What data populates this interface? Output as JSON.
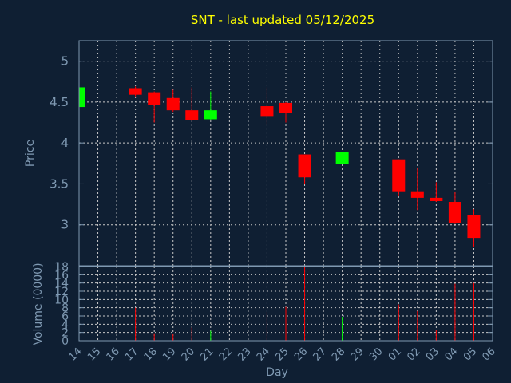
{
  "chart_data": [
    {
      "type": "candlestick",
      "title": "SNT - last updated 05/12/2025",
      "ylabel": "Price",
      "ylim": [
        2.5,
        5.25
      ],
      "yticks": [
        3,
        3.5,
        4,
        4.5,
        5
      ],
      "ytick_labels": [
        "3",
        "3.5",
        "4",
        "4.5",
        "5"
      ],
      "grid": true,
      "colors": {
        "up": "#00ff00",
        "down": "#ff0000"
      },
      "x": [
        "14",
        "15",
        "16",
        "17",
        "18",
        "19",
        "20",
        "21",
        "22",
        "23",
        "24",
        "25",
        "26",
        "27",
        "28",
        "29",
        "30",
        "01",
        "02",
        "03",
        "04",
        "05",
        "06"
      ],
      "candles": [
        {
          "day": "14",
          "open": 4.44,
          "high": 4.68,
          "low": 4.43,
          "close": 4.68
        },
        {
          "day": "17",
          "open": 4.67,
          "high": 4.69,
          "low": 4.57,
          "close": 4.59
        },
        {
          "day": "18",
          "open": 4.62,
          "high": 4.63,
          "low": 4.25,
          "close": 4.47
        },
        {
          "day": "19",
          "open": 4.55,
          "high": 4.65,
          "low": 4.38,
          "close": 4.4
        },
        {
          "day": "20",
          "open": 4.4,
          "high": 4.68,
          "low": 4.27,
          "close": 4.28
        },
        {
          "day": "21",
          "open": 4.29,
          "high": 4.63,
          "low": 4.28,
          "close": 4.4
        },
        {
          "day": "24",
          "open": 4.45,
          "high": 4.68,
          "low": 4.22,
          "close": 4.32
        },
        {
          "day": "25",
          "open": 4.49,
          "high": 4.5,
          "low": 4.25,
          "close": 4.37
        },
        {
          "day": "26",
          "open": 3.86,
          "high": 3.86,
          "low": 3.5,
          "close": 3.58
        },
        {
          "day": "28",
          "open": 3.74,
          "high": 3.89,
          "low": 3.74,
          "close": 3.89
        },
        {
          "day": "01",
          "open": 3.8,
          "high": 3.8,
          "low": 3.35,
          "close": 3.41
        },
        {
          "day": "02",
          "open": 3.41,
          "high": 3.7,
          "low": 3.18,
          "close": 3.33
        },
        {
          "day": "03",
          "open": 3.33,
          "high": 3.52,
          "low": 3.28,
          "close": 3.29
        },
        {
          "day": "04",
          "open": 3.28,
          "high": 3.4,
          "low": 3.01,
          "close": 3.02
        },
        {
          "day": "05",
          "open": 3.12,
          "high": 3.19,
          "low": 2.73,
          "close": 2.84
        }
      ]
    },
    {
      "type": "bar",
      "xlabel": "Day",
      "ylabel": "Volume (0000)",
      "ylim": [
        0,
        18
      ],
      "yticks": [
        0,
        2,
        4,
        6,
        8,
        10,
        12,
        14,
        16,
        18
      ],
      "ytick_labels": [
        "0",
        "2",
        "4",
        "6",
        "8",
        "10",
        "12",
        "14",
        "16",
        "18"
      ],
      "x": [
        "14",
        "15",
        "16",
        "17",
        "18",
        "19",
        "20",
        "21",
        "22",
        "23",
        "24",
        "25",
        "26",
        "27",
        "28",
        "29",
        "30",
        "01",
        "02",
        "03",
        "04",
        "05",
        "06"
      ],
      "values": [
        {
          "day": "17",
          "volume": 8.0,
          "direction": "down"
        },
        {
          "day": "18",
          "volume": 1.8,
          "direction": "down"
        },
        {
          "day": "19",
          "volume": 1.6,
          "direction": "down"
        },
        {
          "day": "20",
          "volume": 3.2,
          "direction": "down"
        },
        {
          "day": "21",
          "volume": 2.4,
          "direction": "up"
        },
        {
          "day": "24",
          "volume": 7.0,
          "direction": "down"
        },
        {
          "day": "25",
          "volume": 8.2,
          "direction": "down"
        },
        {
          "day": "26",
          "volume": 18.0,
          "direction": "down"
        },
        {
          "day": "28",
          "volume": 5.8,
          "direction": "up"
        },
        {
          "day": "01",
          "volume": 8.8,
          "direction": "down"
        },
        {
          "day": "02",
          "volume": 7.2,
          "direction": "down"
        },
        {
          "day": "03",
          "volume": 2.6,
          "direction": "down"
        },
        {
          "day": "04",
          "volume": 13.8,
          "direction": "down"
        },
        {
          "day": "05",
          "volume": 14.0,
          "direction": "down"
        }
      ]
    }
  ]
}
